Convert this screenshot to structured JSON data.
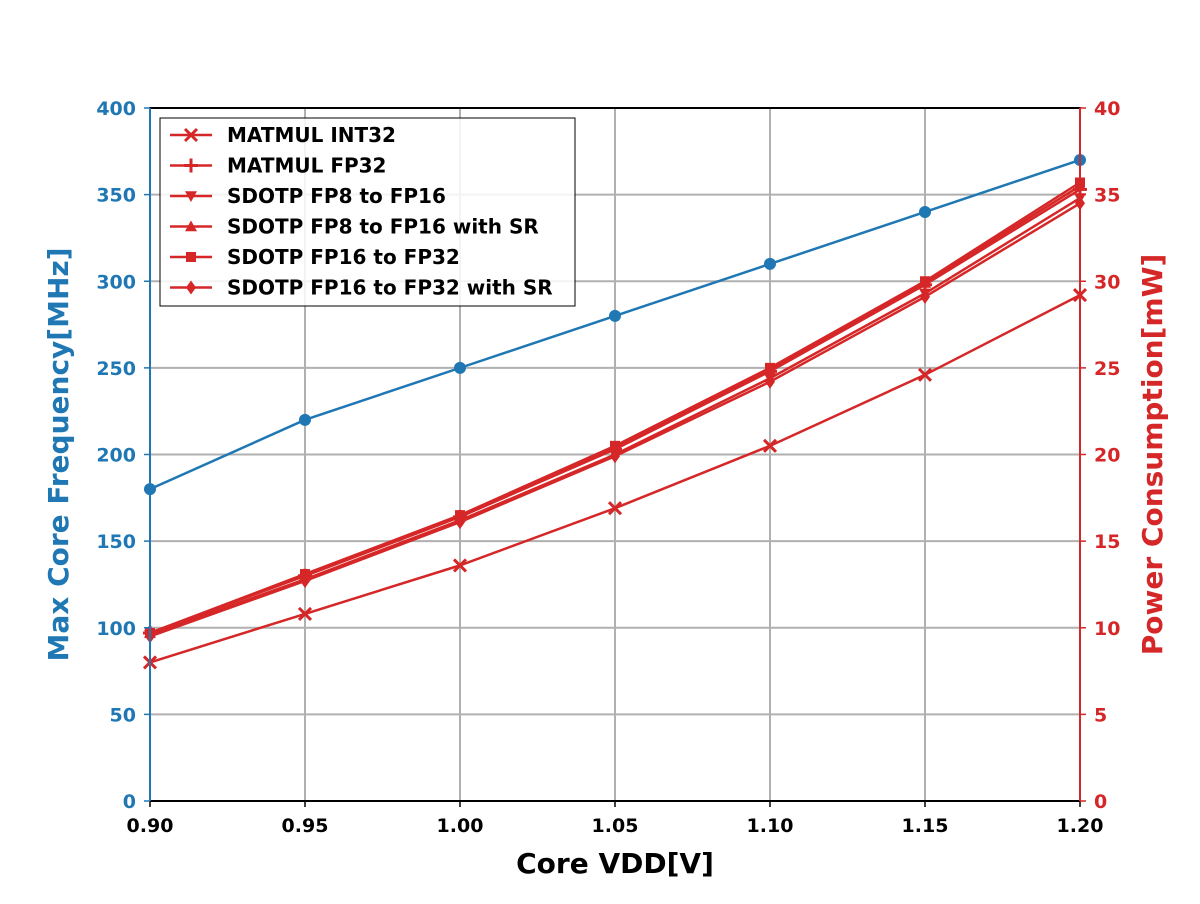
{
  "chart_data": {
    "type": "line",
    "x": [
      0.9,
      0.95,
      1.0,
      1.05,
      1.1,
      1.15,
      1.2
    ],
    "x_tick_labels": [
      "0.90",
      "0.95",
      "1.00",
      "1.05",
      "1.10",
      "1.15",
      "1.20"
    ],
    "xlabel": "Core VDD[V]",
    "xlim": [
      0.9,
      1.2
    ],
    "left_axis": {
      "label": "Max Core Frequency[MHz]",
      "lim": [
        0,
        400
      ],
      "ticks": [
        0,
        50,
        100,
        150,
        200,
        250,
        300,
        350,
        400
      ],
      "color": "#1f77b4"
    },
    "right_axis": {
      "label": "Power Consumption[mW]",
      "lim": [
        0,
        40
      ],
      "ticks": [
        0,
        5,
        10,
        15,
        20,
        25,
        30,
        35,
        40
      ],
      "color": "#d62728"
    },
    "frequency_series": {
      "axis": "left",
      "color": "#1f77b4",
      "marker": "circle",
      "values": [
        180,
        220,
        250,
        280,
        310,
        340,
        370
      ]
    },
    "power_series": [
      {
        "name": "MATMUL INT32",
        "marker": "x",
        "color": "#d62728",
        "values": [
          8.0,
          10.8,
          13.6,
          16.9,
          20.5,
          24.6,
          29.2
        ]
      },
      {
        "name": "MATMUL FP32",
        "marker": "plus",
        "color": "#d62728",
        "values": [
          9.7,
          13.0,
          16.4,
          20.3,
          24.8,
          29.8,
          35.3
        ]
      },
      {
        "name": "SDOTP FP8 to FP16",
        "marker": "triangle-down",
        "color": "#d62728",
        "values": [
          9.6,
          12.8,
          16.2,
          20.0,
          24.4,
          29.3,
          34.8
        ]
      },
      {
        "name": "SDOTP FP8 to FP16 with SR",
        "marker": "triangle-up",
        "color": "#d62728",
        "values": [
          9.7,
          13.0,
          16.4,
          20.4,
          24.9,
          29.9,
          35.5
        ]
      },
      {
        "name": "SDOTP FP16 to FP32",
        "marker": "square",
        "color": "#d62728",
        "values": [
          9.7,
          13.1,
          16.5,
          20.5,
          25.0,
          30.0,
          35.7
        ]
      },
      {
        "name": "SDOTP FP16 to FP32 with SR",
        "marker": "diamond",
        "color": "#d62728",
        "values": [
          9.5,
          12.7,
          16.1,
          19.9,
          24.2,
          29.1,
          34.5
        ]
      }
    ],
    "grid": true,
    "legend_position": "upper-left"
  }
}
